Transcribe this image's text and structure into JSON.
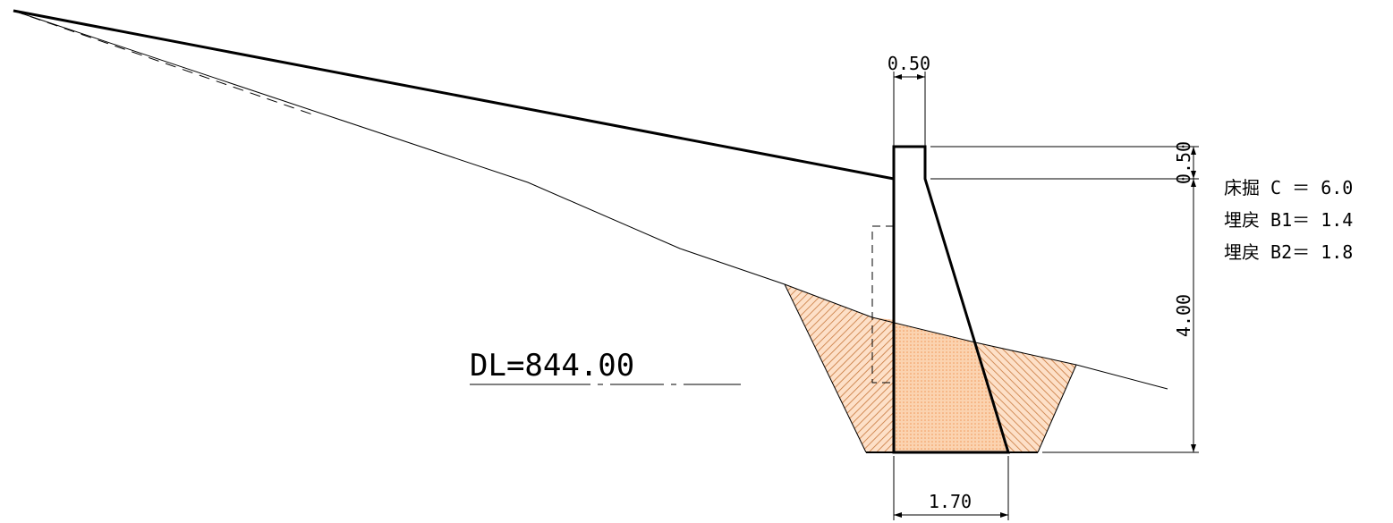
{
  "dimensions": {
    "crest_width": "0.50",
    "crest_height": "0.50",
    "wall_height": "4.00",
    "base_width": "1.70"
  },
  "datum": {
    "label": "DL=844.00"
  },
  "quantities": [
    {
      "name": "床掘",
      "code": "C",
      "eq": "＝",
      "value": "6.0"
    },
    {
      "name": "埋戻",
      "code": "B1",
      "eq": "＝",
      "value": "1.4"
    },
    {
      "name": "埋戻",
      "code": "B2",
      "eq": "＝",
      "value": "1.8"
    }
  ],
  "colors": {
    "line": "#000000",
    "fill_orange": "#f6b183",
    "hatch": "#b5651d"
  }
}
